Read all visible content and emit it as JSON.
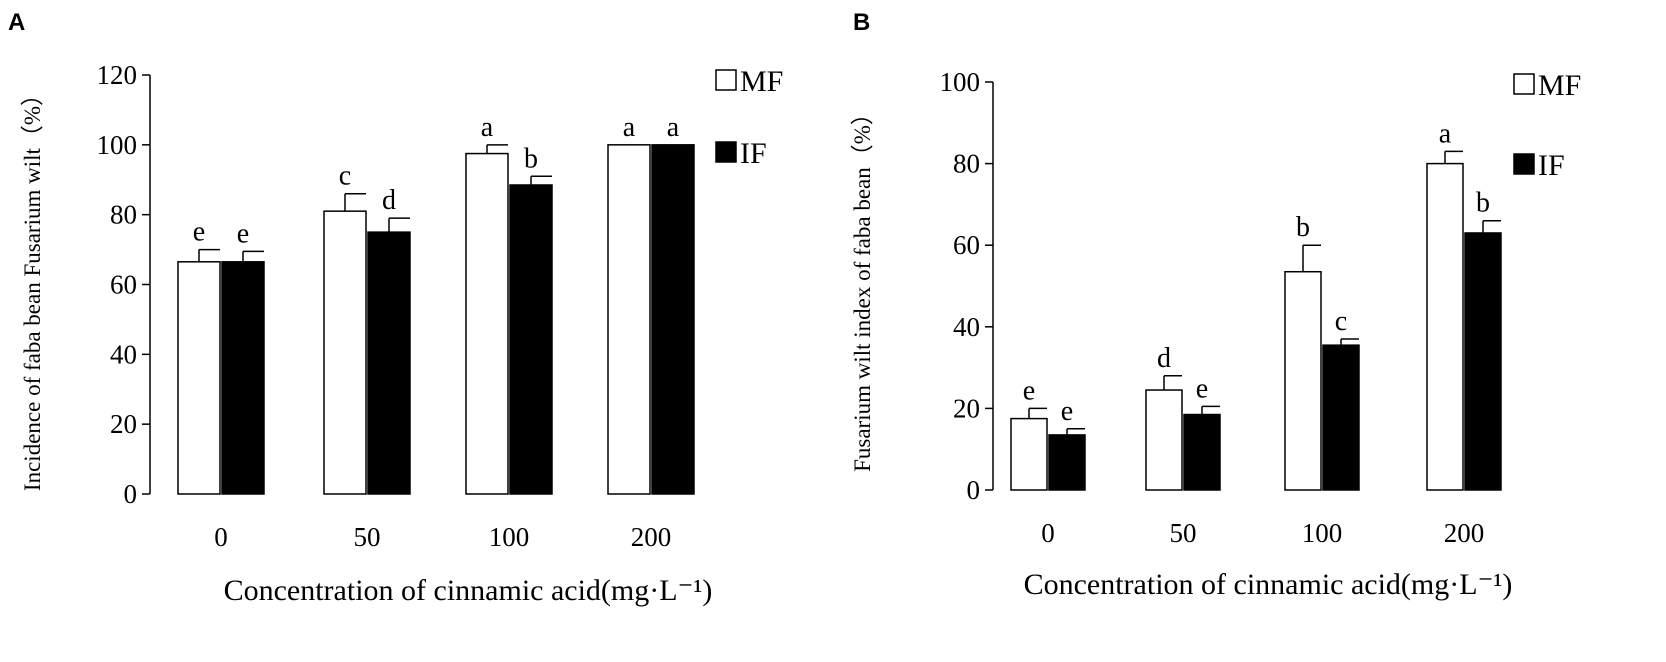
{
  "panels": [
    {
      "letter": "A",
      "xlabel": "Concentration of cinnamic  acid(mg·L⁻¹)",
      "ylabel": "Incidence of faba bean Fusarium wilt（%）",
      "legend": [
        "MF",
        "IF"
      ]
    },
    {
      "letter": "B",
      "xlabel": "Concentration of cinnamic  acid(mg·L⁻¹)",
      "ylabel": "Fusarium  wilt  index  of faba bean（%）",
      "legend": [
        "MF",
        "IF"
      ]
    }
  ],
  "chart_data": [
    {
      "type": "bar",
      "title": "",
      "xlabel": "Concentration of cinnamic  acid(mg·L⁻¹)",
      "ylabel": "Incidence of faba bean Fusarium wilt（%）",
      "categories": [
        "0",
        "50",
        "100",
        "200"
      ],
      "ylim": [
        0,
        120
      ],
      "yticks": [
        0,
        20,
        40,
        60,
        80,
        100,
        120
      ],
      "legend_position": "top-right",
      "grid": false,
      "series": [
        {
          "name": "MF",
          "color": "#ffffff",
          "values": [
            66.5,
            81,
            97.5,
            100
          ],
          "errors": [
            3.5,
            5,
            2.5,
            0
          ],
          "labels": [
            "e",
            "c",
            "a",
            "a"
          ]
        },
        {
          "name": "IF",
          "color": "#000000",
          "values": [
            66.5,
            75,
            88.5,
            100
          ],
          "errors": [
            3,
            4,
            2.5,
            0
          ],
          "labels": [
            "e",
            "d",
            "b",
            "a"
          ]
        }
      ]
    },
    {
      "type": "bar",
      "title": "",
      "xlabel": "Concentration of cinnamic  acid(mg·L⁻¹)",
      "ylabel": "Fusarium  wilt  index  of faba bean（%）",
      "categories": [
        "0",
        "50",
        "100",
        "200"
      ],
      "ylim": [
        0,
        100
      ],
      "yticks": [
        0,
        20,
        40,
        60,
        80,
        100
      ],
      "legend_position": "top-right",
      "grid": false,
      "series": [
        {
          "name": "MF",
          "color": "#ffffff",
          "values": [
            17.5,
            24.5,
            53.5,
            80
          ],
          "errors": [
            2.5,
            3.5,
            6.5,
            3
          ],
          "labels": [
            "e",
            "d",
            "b",
            "a"
          ]
        },
        {
          "name": "IF",
          "color": "#000000",
          "values": [
            13.5,
            18.5,
            35.5,
            63
          ],
          "errors": [
            1.5,
            2,
            1.5,
            3
          ],
          "labels": [
            "e",
            "e",
            "c",
            "b"
          ]
        }
      ]
    }
  ]
}
